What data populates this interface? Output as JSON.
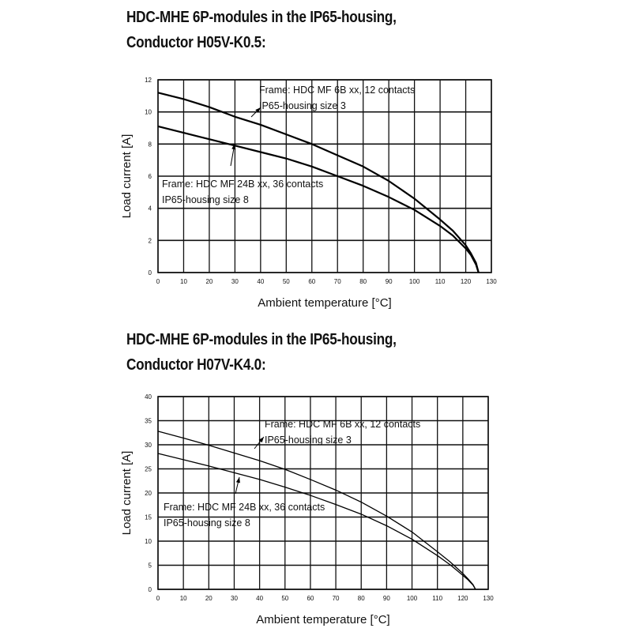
{
  "titles": {
    "chart1_line1": "HDC-MHE 6P-modules in the IP65-housing,",
    "chart1_line2": "Conductor H05V-K0.5:",
    "chart2_line1": "HDC-MHE 6P-modules in the IP65-housing,",
    "chart2_line2": "Conductor H07V-K4.0:"
  },
  "chart_data": [
    {
      "type": "line",
      "title": "HDC-MHE 6P-modules in the IP65-housing, Conductor H05V-K0.5:",
      "xlabel": "Ambient temperature [°C]",
      "ylabel": "Load current [A]",
      "xlim": [
        0,
        130
      ],
      "ylim": [
        0,
        12
      ],
      "xticks": [
        0,
        10,
        20,
        30,
        40,
        50,
        60,
        70,
        80,
        90,
        100,
        110,
        120,
        130
      ],
      "yticks": [
        0,
        2,
        4,
        6,
        8,
        10,
        12
      ],
      "grid": true,
      "series": [
        {
          "x": [
            0,
            10,
            20,
            30,
            40,
            50,
            60,
            70,
            80,
            90,
            100,
            110,
            115,
            120,
            122,
            124,
            125
          ],
          "y": [
            11.2,
            10.8,
            10.3,
            9.7,
            9.2,
            8.6,
            8.0,
            7.3,
            6.6,
            5.7,
            4.6,
            3.3,
            2.6,
            1.7,
            1.2,
            0.6,
            0
          ]
        },
        {
          "x": [
            0,
            10,
            20,
            30,
            40,
            50,
            60,
            70,
            80,
            90,
            100,
            110,
            115,
            120,
            122,
            124,
            125
          ],
          "y": [
            9.1,
            8.7,
            8.3,
            7.9,
            7.5,
            7.1,
            6.6,
            6.0,
            5.4,
            4.7,
            3.9,
            2.9,
            2.3,
            1.5,
            1.1,
            0.5,
            0
          ]
        }
      ],
      "annotations": [
        {
          "line1": "Frame: HDC MF 6B xx, 12 contacts",
          "line2": "IP65-housing size 3"
        },
        {
          "line1": "Frame: HDC MF 24B xx, 36 contacts",
          "line2": "IP65-housing size 8"
        }
      ]
    },
    {
      "type": "line",
      "title": "HDC-MHE 6P-modules in the IP65-housing, Conductor H07V-K4.0:",
      "xlabel": "Ambient temperature [°C]",
      "ylabel": "Load current [A]",
      "xlim": [
        0,
        130
      ],
      "ylim": [
        0,
        40
      ],
      "xticks": [
        0,
        10,
        20,
        30,
        40,
        50,
        60,
        70,
        80,
        90,
        100,
        110,
        120,
        130
      ],
      "yticks": [
        0,
        5,
        10,
        15,
        20,
        25,
        30,
        35,
        40
      ],
      "grid": true,
      "series": [
        {
          "x": [
            0,
            10,
            20,
            30,
            40,
            50,
            60,
            70,
            80,
            90,
            100,
            110,
            115,
            120,
            122,
            124,
            125
          ],
          "y": [
            32.8,
            31.4,
            29.9,
            28.3,
            26.7,
            24.9,
            22.8,
            20.6,
            18.1,
            15.2,
            11.9,
            7.8,
            5.7,
            3.3,
            2.2,
            1.0,
            0
          ]
        },
        {
          "x": [
            0,
            10,
            20,
            30,
            40,
            50,
            60,
            70,
            80,
            90,
            100,
            110,
            115,
            120,
            122,
            124,
            125
          ],
          "y": [
            28.2,
            26.9,
            25.6,
            24.2,
            22.8,
            21.2,
            19.5,
            17.6,
            15.6,
            13.2,
            10.4,
            7.0,
            5.1,
            2.9,
            2.0,
            0.9,
            0
          ]
        }
      ],
      "annotations": [
        {
          "line1": "Frame: HDC MF 6B xx, 12 contacts",
          "line2": "IP65-housing size 3"
        },
        {
          "line1": "Frame: HDC MF 24B xx, 36 contacts",
          "line2": "IP65-housing size 8"
        }
      ]
    }
  ]
}
